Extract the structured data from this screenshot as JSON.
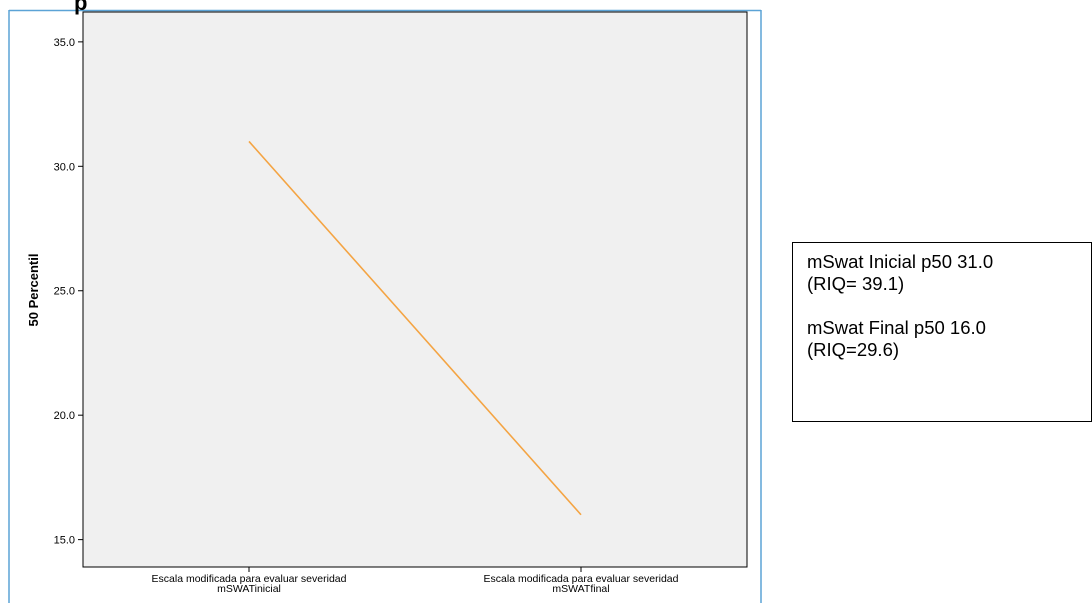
{
  "chart_data": {
    "type": "line",
    "title": "",
    "xlabel": "",
    "ylabel": "50 Percentil",
    "categories": [
      [
        "Escala modificada para evaluar severidad",
        "mSWATinicial"
      ],
      [
        "Escala modificada para evaluar severidad",
        "mSWATfinal"
      ]
    ],
    "series": [
      {
        "values": [
          31.0,
          16.0
        ]
      }
    ],
    "ylim": [
      13.9,
      36.2
    ],
    "yticks": [
      15.0,
      20.0,
      25.0,
      30.0,
      35.0
    ],
    "ytick_labels": [
      "15.0",
      "20.0",
      "25.0",
      "30.0",
      "35.0"
    ],
    "grid": false,
    "line_color": "#F4A443",
    "plot_background": "#F0F0F0"
  },
  "header_fragment": "p",
  "annotation": {
    "lines": [
      [
        "mSwat Inicial p50 31.0",
        "(RIQ= 39.1)"
      ],
      [
        "mSwat Final p50 16.0",
        "(RIQ=29.6)"
      ]
    ]
  }
}
